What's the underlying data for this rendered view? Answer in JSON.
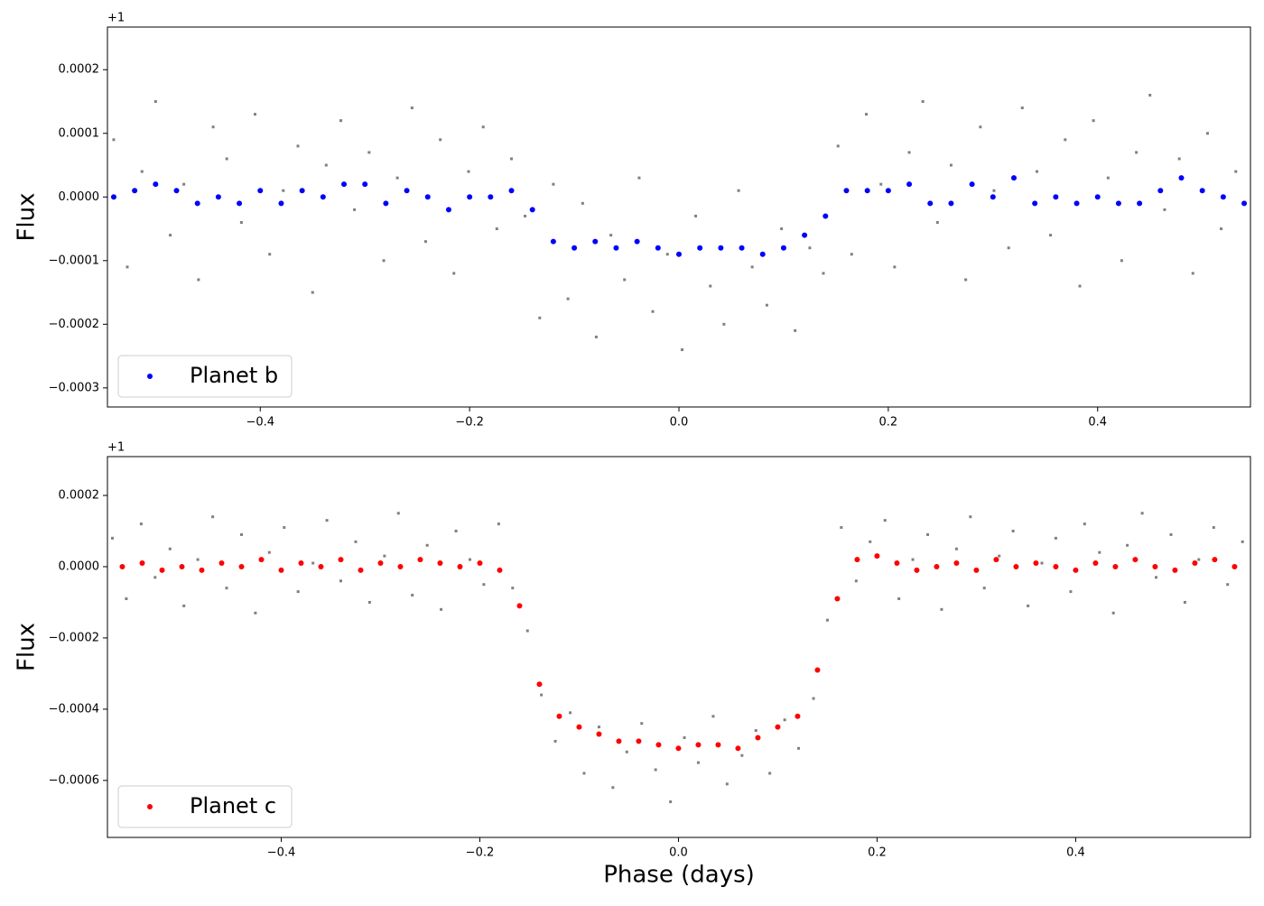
{
  "chart_data": [
    {
      "type": "scatter",
      "ylabel": "Flux",
      "offset_label": "+1",
      "legend": "lower left",
      "xlim": [
        -0.546,
        0.546
      ],
      "ylim": [
        -0.00033,
        0.000267
      ],
      "xticks": [
        {
          "value": -0.4,
          "label": "−0.4"
        },
        {
          "value": -0.2,
          "label": "−0.2"
        },
        {
          "value": 0,
          "label": "0.0"
        },
        0.2,
        0.4
      ],
      "yticks": [
        {
          "value": -0.0003,
          "label": "−0.0003"
        },
        {
          "value": -0.0002,
          "label": "−0.0002"
        },
        {
          "value": -0.0001,
          "label": "−0.0001"
        },
        {
          "value": 0,
          "label": "0.0000"
        },
        0.0001,
        0.0002
      ],
      "series": [
        {
          "color": "#808080",
          "x": [
            -0.54,
            -0.527,
            -0.513,
            -0.5,
            -0.486,
            -0.473,
            -0.459,
            -0.445,
            -0.432,
            -0.418,
            -0.405,
            -0.391,
            -0.378,
            -0.364,
            -0.35,
            -0.337,
            -0.323,
            -0.31,
            -0.296,
            -0.282,
            -0.269,
            -0.255,
            -0.242,
            -0.228,
            -0.215,
            -0.201,
            -0.187,
            -0.174,
            -0.16,
            -0.147,
            -0.133,
            -0.12,
            -0.106,
            -0.092,
            -0.079,
            -0.065,
            -0.052,
            -0.038,
            -0.025,
            -0.011,
            0.003,
            0.016,
            0.03,
            0.043,
            0.057,
            0.07,
            0.084,
            0.098,
            0.111,
            0.125,
            0.138,
            0.152,
            0.165,
            0.179,
            0.193,
            0.206,
            0.22,
            0.233,
            0.247,
            0.26,
            0.274,
            0.288,
            0.301,
            0.315,
            0.328,
            0.342,
            0.355,
            0.369,
            0.383,
            0.396,
            0.41,
            0.423,
            0.437,
            0.45,
            0.464,
            0.478,
            0.491,
            0.505,
            0.518,
            0.532
          ],
          "values": [
            9e-05,
            -0.00011,
            4e-05,
            0.00015,
            -6e-05,
            2e-05,
            -0.00013,
            0.00011,
            6e-05,
            -4e-05,
            0.00013,
            -9e-05,
            1e-05,
            8e-05,
            -0.00015,
            5e-05,
            0.00012,
            -2e-05,
            7e-05,
            -0.0001,
            3e-05,
            0.00014,
            -7e-05,
            9e-05,
            -0.00012,
            4e-05,
            0.00011,
            -5e-05,
            6e-05,
            -3e-05,
            -0.00019,
            2e-05,
            -0.00016,
            -1e-05,
            -0.00022,
            -6e-05,
            -0.00013,
            3e-05,
            -0.00018,
            -9e-05,
            -0.00024,
            -3e-05,
            -0.00014,
            -0.0002,
            1e-05,
            -0.00011,
            -0.00017,
            -5e-05,
            -0.00021,
            -8e-05,
            -0.00012,
            8e-05,
            -9e-05,
            0.00013,
            2e-05,
            -0.00011,
            7e-05,
            0.00015,
            -4e-05,
            5e-05,
            -0.00013,
            0.00011,
            1e-05,
            -8e-05,
            0.00014,
            4e-05,
            -6e-05,
            9e-05,
            -0.00014,
            0.00012,
            3e-05,
            -0.0001,
            7e-05,
            0.00016,
            -2e-05,
            6e-05,
            -0.00012,
            0.0001,
            -5e-05,
            4e-05
          ]
        },
        {
          "name": "Planet b",
          "color": "#0000ff",
          "x": [
            -0.54,
            -0.52,
            -0.5,
            -0.48,
            -0.46,
            -0.44,
            -0.42,
            -0.4,
            -0.38,
            -0.36,
            -0.34,
            -0.32,
            -0.3,
            -0.28,
            -0.26,
            -0.24,
            -0.22,
            -0.2,
            -0.18,
            -0.16,
            -0.14,
            -0.12,
            -0.1,
            -0.08,
            -0.06,
            -0.04,
            -0.02,
            0,
            0.02,
            0.04,
            0.06,
            0.08,
            0.1,
            0.12,
            0.14,
            0.16,
            0.18,
            0.2,
            0.22,
            0.24,
            0.26,
            0.28,
            0.3,
            0.32,
            0.34,
            0.36,
            0.38,
            0.4,
            0.42,
            0.44,
            0.46,
            0.48,
            0.5,
            0.52,
            0.54
          ],
          "values": [
            0,
            1e-05,
            2e-05,
            1e-05,
            -1e-05,
            0,
            -1e-05,
            1e-05,
            -1e-05,
            1e-05,
            0,
            2e-05,
            2e-05,
            -1e-05,
            1e-05,
            0,
            -2e-05,
            0,
            0,
            1e-05,
            -2e-05,
            -7e-05,
            -8e-05,
            -7e-05,
            -8e-05,
            -7e-05,
            -8e-05,
            -9e-05,
            -8e-05,
            -8e-05,
            -8e-05,
            -9e-05,
            -8e-05,
            -6e-05,
            -3e-05,
            1e-05,
            1e-05,
            1e-05,
            2e-05,
            -1e-05,
            -1e-05,
            2e-05,
            0,
            3e-05,
            -1e-05,
            0,
            -1e-05,
            0,
            -1e-05,
            -1e-05,
            1e-05,
            3e-05,
            1e-05,
            0,
            -1e-05
          ]
        }
      ]
    },
    {
      "type": "scatter",
      "ylabel": "Flux",
      "xlabel": "Phase (days)",
      "offset_label": "+1",
      "legend": "lower left",
      "xlim": [
        -0.575,
        0.576
      ],
      "ylim": [
        -0.00076,
        0.000309
      ],
      "xticks": [
        {
          "value": -0.4,
          "label": "−0.4"
        },
        {
          "value": -0.2,
          "label": "−0.2"
        },
        {
          "value": 0,
          "label": "0.0"
        },
        0.2,
        0.4
      ],
      "yticks": [
        {
          "value": -0.0006,
          "label": "−0.0006"
        },
        {
          "value": -0.0004,
          "label": "−0.0004"
        },
        {
          "value": -0.0002,
          "label": "−0.0002"
        },
        {
          "value": 0,
          "label": "0.0000"
        },
        0.0002
      ],
      "series": [
        {
          "color": "#808080",
          "x": [
            -0.57,
            -0.556,
            -0.541,
            -0.527,
            -0.512,
            -0.498,
            -0.484,
            -0.469,
            -0.455,
            -0.44,
            -0.426,
            -0.412,
            -0.397,
            -0.383,
            -0.368,
            -0.354,
            -0.34,
            -0.325,
            -0.311,
            -0.296,
            -0.282,
            -0.268,
            -0.253,
            -0.239,
            -0.224,
            -0.21,
            -0.196,
            -0.181,
            -0.167,
            -0.152,
            -0.138,
            -0.124,
            -0.109,
            -0.095,
            -0.08,
            -0.066,
            -0.052,
            -0.037,
            -0.023,
            -0.008,
            0.006,
            0.02,
            0.035,
            0.049,
            0.064,
            0.078,
            0.092,
            0.107,
            0.121,
            0.136,
            0.15,
            0.164,
            0.179,
            0.193,
            0.208,
            0.222,
            0.236,
            0.251,
            0.265,
            0.28,
            0.294,
            0.308,
            0.323,
            0.337,
            0.352,
            0.366,
            0.38,
            0.395,
            0.409,
            0.424,
            0.438,
            0.452,
            0.467,
            0.481,
            0.496,
            0.51,
            0.524,
            0.539,
            0.553,
            0.568
          ],
          "values": [
            8e-05,
            -9e-05,
            0.00012,
            -3e-05,
            5e-05,
            -0.00011,
            2e-05,
            0.00014,
            -6e-05,
            9e-05,
            -0.00013,
            4e-05,
            0.00011,
            -7e-05,
            1e-05,
            0.00013,
            -4e-05,
            7e-05,
            -0.0001,
            3e-05,
            0.00015,
            -8e-05,
            6e-05,
            -0.00012,
            0.0001,
            2e-05,
            -5e-05,
            0.00012,
            -6e-05,
            -0.00018,
            -0.00036,
            -0.00049,
            -0.00041,
            -0.00058,
            -0.00045,
            -0.00062,
            -0.00052,
            -0.00044,
            -0.00057,
            -0.00066,
            -0.00048,
            -0.00055,
            -0.00042,
            -0.00061,
            -0.00053,
            -0.00046,
            -0.00058,
            -0.00043,
            -0.00051,
            -0.00037,
            -0.00015,
            0.00011,
            -4e-05,
            7e-05,
            0.00013,
            -9e-05,
            2e-05,
            9e-05,
            -0.00012,
            5e-05,
            0.00014,
            -6e-05,
            3e-05,
            0.0001,
            -0.00011,
            1e-05,
            8e-05,
            -7e-05,
            0.00012,
            4e-05,
            -0.00013,
            6e-05,
            0.00015,
            -3e-05,
            9e-05,
            -0.0001,
            2e-05,
            0.00011,
            -5e-05,
            7e-05
          ]
        },
        {
          "name": "Planet c",
          "color": "#ff0000",
          "x": [
            -0.56,
            -0.54,
            -0.52,
            -0.5,
            -0.48,
            -0.46,
            -0.44,
            -0.42,
            -0.4,
            -0.38,
            -0.36,
            -0.34,
            -0.32,
            -0.3,
            -0.28,
            -0.26,
            -0.24,
            -0.22,
            -0.2,
            -0.18,
            -0.16,
            -0.14,
            -0.12,
            -0.1,
            -0.08,
            -0.06,
            -0.04,
            -0.02,
            0,
            0.02,
            0.04,
            0.06,
            0.08,
            0.1,
            0.12,
            0.14,
            0.16,
            0.18,
            0.2,
            0.22,
            0.24,
            0.26,
            0.28,
            0.3,
            0.32,
            0.34,
            0.36,
            0.38,
            0.4,
            0.42,
            0.44,
            0.46,
            0.48,
            0.5,
            0.52,
            0.54,
            0.56
          ],
          "values": [
            0,
            1e-05,
            -1e-05,
            0,
            -1e-05,
            1e-05,
            0,
            2e-05,
            -1e-05,
            1e-05,
            0,
            2e-05,
            -1e-05,
            1e-05,
            0,
            2e-05,
            1e-05,
            0,
            1e-05,
            -1e-05,
            -0.00011,
            -0.00033,
            -0.00042,
            -0.00045,
            -0.00047,
            -0.00049,
            -0.00049,
            -0.0005,
            -0.00051,
            -0.0005,
            -0.0005,
            -0.00051,
            -0.00048,
            -0.00045,
            -0.00042,
            -0.00029,
            -9e-05,
            2e-05,
            3e-05,
            1e-05,
            -1e-05,
            0,
            1e-05,
            -1e-05,
            2e-05,
            0,
            1e-05,
            0,
            -1e-05,
            1e-05,
            0,
            2e-05,
            0,
            -1e-05,
            1e-05,
            2e-05,
            0
          ]
        }
      ]
    }
  ]
}
